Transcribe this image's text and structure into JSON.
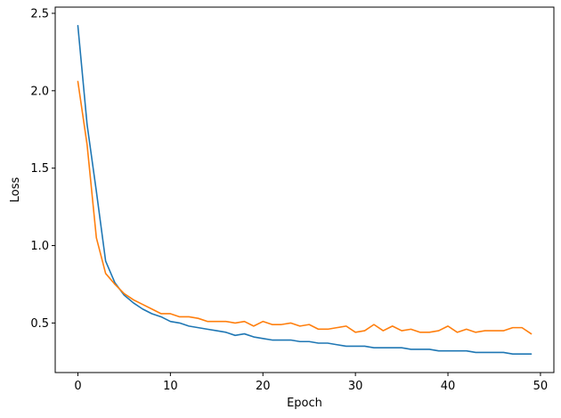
{
  "chart_data": {
    "type": "line",
    "title": "",
    "xlabel": "Epoch",
    "ylabel": "Loss",
    "xlim": [
      -2.45,
      51.45
    ],
    "ylim": [
      0.18,
      2.54
    ],
    "xticks": [
      0,
      10,
      20,
      30,
      40,
      50
    ],
    "xtick_labels": [
      "0",
      "10",
      "20",
      "30",
      "40",
      "50"
    ],
    "yticks": [
      0.5,
      1.0,
      1.5,
      2.0,
      2.5
    ],
    "ytick_labels": [
      "0.5",
      "1.0",
      "1.5",
      "2.0",
      "2.5"
    ],
    "grid": false,
    "legend": false,
    "x": [
      0,
      1,
      2,
      3,
      4,
      5,
      6,
      7,
      8,
      9,
      10,
      11,
      12,
      13,
      14,
      15,
      16,
      17,
      18,
      19,
      20,
      21,
      22,
      23,
      24,
      25,
      26,
      27,
      28,
      29,
      30,
      31,
      32,
      33,
      34,
      35,
      36,
      37,
      38,
      39,
      40,
      41,
      42,
      43,
      44,
      45,
      46,
      47,
      48,
      49
    ],
    "series": [
      {
        "color": "#1f77b4",
        "values": [
          2.42,
          1.78,
          1.35,
          0.9,
          0.76,
          0.68,
          0.63,
          0.59,
          0.56,
          0.54,
          0.51,
          0.5,
          0.48,
          0.47,
          0.46,
          0.45,
          0.44,
          0.42,
          0.43,
          0.41,
          0.4,
          0.39,
          0.39,
          0.39,
          0.38,
          0.38,
          0.37,
          0.37,
          0.36,
          0.35,
          0.35,
          0.35,
          0.34,
          0.34,
          0.34,
          0.34,
          0.33,
          0.33,
          0.33,
          0.32,
          0.32,
          0.32,
          0.32,
          0.31,
          0.31,
          0.31,
          0.31,
          0.3,
          0.3,
          0.3
        ]
      },
      {
        "color": "#ff7f0e",
        "values": [
          2.06,
          1.65,
          1.05,
          0.82,
          0.75,
          0.69,
          0.65,
          0.62,
          0.59,
          0.56,
          0.56,
          0.54,
          0.54,
          0.53,
          0.51,
          0.51,
          0.51,
          0.5,
          0.51,
          0.48,
          0.51,
          0.49,
          0.49,
          0.5,
          0.48,
          0.49,
          0.46,
          0.46,
          0.47,
          0.48,
          0.44,
          0.45,
          0.49,
          0.45,
          0.48,
          0.45,
          0.46,
          0.44,
          0.44,
          0.45,
          0.48,
          0.44,
          0.46,
          0.44,
          0.45,
          0.45,
          0.45,
          0.47,
          0.47,
          0.43
        ]
      }
    ]
  }
}
